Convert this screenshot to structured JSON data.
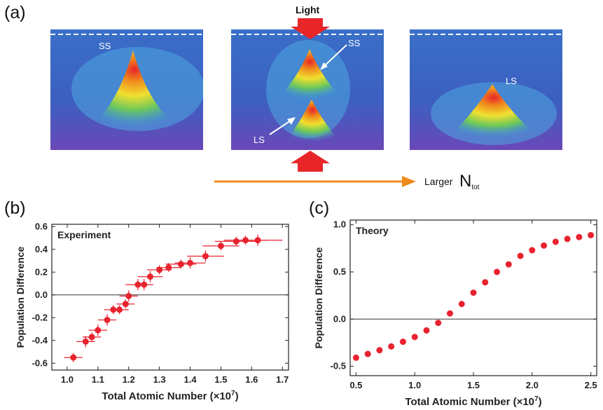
{
  "figure": {
    "panel_a": {
      "label": "(a)",
      "light_label": "Light",
      "axis_caption": "Larger",
      "n_symbol": "N",
      "n_subscript": "tot",
      "images": [
        {
          "labels": [
            "SS"
          ]
        },
        {
          "labels": [
            "SS",
            "LS"
          ]
        },
        {
          "labels": [
            "LS"
          ]
        }
      ],
      "colors": {
        "arrow_red": "#e8262a",
        "arrow_orange": "#f08a1c",
        "dashed": "#ffffff"
      }
    },
    "panel_b": {
      "label": "(b)",
      "inset": "Experiment",
      "ylabel": "Population Difference",
      "xlabel": "Total Atomic Number",
      "xunit": "(×10",
      "xunit_exp": "7",
      "xunit_close": ")"
    },
    "panel_c": {
      "label": "(c)",
      "inset": "Theory",
      "ylabel": "Population Difference",
      "xlabel": "Total Atomic Number",
      "xunit": "(×10",
      "xunit_exp": "7",
      "xunit_close": ")"
    }
  },
  "chart_data": [
    {
      "type": "scatter",
      "name_in_figure": "Experiment",
      "xlabel": "Total Atomic Number (×10^7)",
      "ylabel": "Population Difference",
      "xlim": [
        0.95,
        1.72
      ],
      "ylim": [
        -0.66,
        0.62
      ],
      "xticks": [
        1.0,
        1.1,
        1.2,
        1.3,
        1.4,
        1.5,
        1.6,
        1.7
      ],
      "xtick_labels": [
        "1.0",
        "1.1",
        "1.2",
        "1.3",
        "1.4",
        "1.5",
        "1.6",
        "1.7"
      ],
      "yticks": [
        -0.6,
        -0.4,
        -0.2,
        0.0,
        0.2,
        0.4,
        0.6
      ],
      "ytick_labels": [
        "-0.6",
        "-0.4",
        "-0.2",
        "0.0",
        "0.2",
        "0.4",
        "0.6"
      ],
      "color": "#e8232f",
      "error_bars": true,
      "zero_line": true,
      "x": [
        1.02,
        1.06,
        1.08,
        1.1,
        1.13,
        1.15,
        1.17,
        1.19,
        1.2,
        1.23,
        1.25,
        1.27,
        1.3,
        1.33,
        1.37,
        1.4,
        1.45,
        1.5,
        1.55,
        1.58,
        1.62
      ],
      "y": [
        -0.55,
        -0.41,
        -0.37,
        -0.31,
        -0.22,
        -0.13,
        -0.13,
        -0.08,
        -0.01,
        0.09,
        0.09,
        0.16,
        0.22,
        0.24,
        0.27,
        0.28,
        0.34,
        0.43,
        0.47,
        0.48,
        0.48
      ],
      "xerr": [
        0.03,
        0.03,
        0.03,
        0.03,
        0.03,
        0.03,
        0.03,
        0.03,
        0.03,
        0.04,
        0.03,
        0.04,
        0.04,
        0.04,
        0.05,
        0.05,
        0.06,
        0.06,
        0.07,
        0.07,
        0.08
      ],
      "yerr": [
        0.04,
        0.05,
        0.04,
        0.05,
        0.05,
        0.04,
        0.04,
        0.04,
        0.05,
        0.05,
        0.05,
        0.05,
        0.04,
        0.04,
        0.04,
        0.05,
        0.05,
        0.04,
        0.04,
        0.04,
        0.05
      ]
    },
    {
      "type": "scatter",
      "name_in_figure": "Theory",
      "xlabel": "Total Atomic Number (×10^7)",
      "ylabel": "Population Difference",
      "xlim": [
        0.45,
        2.55
      ],
      "ylim": [
        -0.6,
        1.05
      ],
      "xticks": [
        0.5,
        1.0,
        1.5,
        2.0,
        2.5
      ],
      "xtick_labels": [
        "0.5",
        "1.0",
        "1.5",
        "2.0",
        "2.5"
      ],
      "yticks": [
        -0.5,
        0.0,
        0.5,
        1.0
      ],
      "ytick_labels": [
        "-0.5",
        "0.0",
        "0.5",
        "1.0"
      ],
      "color": "#e8232f",
      "zero_line": true,
      "x": [
        0.5,
        0.6,
        0.7,
        0.8,
        0.9,
        1.0,
        1.1,
        1.2,
        1.3,
        1.4,
        1.5,
        1.6,
        1.7,
        1.8,
        1.9,
        2.0,
        2.1,
        2.2,
        2.3,
        2.4,
        2.5
      ],
      "y": [
        -0.41,
        -0.37,
        -0.33,
        -0.29,
        -0.24,
        -0.19,
        -0.12,
        -0.04,
        0.06,
        0.16,
        0.28,
        0.39,
        0.5,
        0.58,
        0.67,
        0.73,
        0.78,
        0.82,
        0.85,
        0.87,
        0.89
      ]
    }
  ]
}
